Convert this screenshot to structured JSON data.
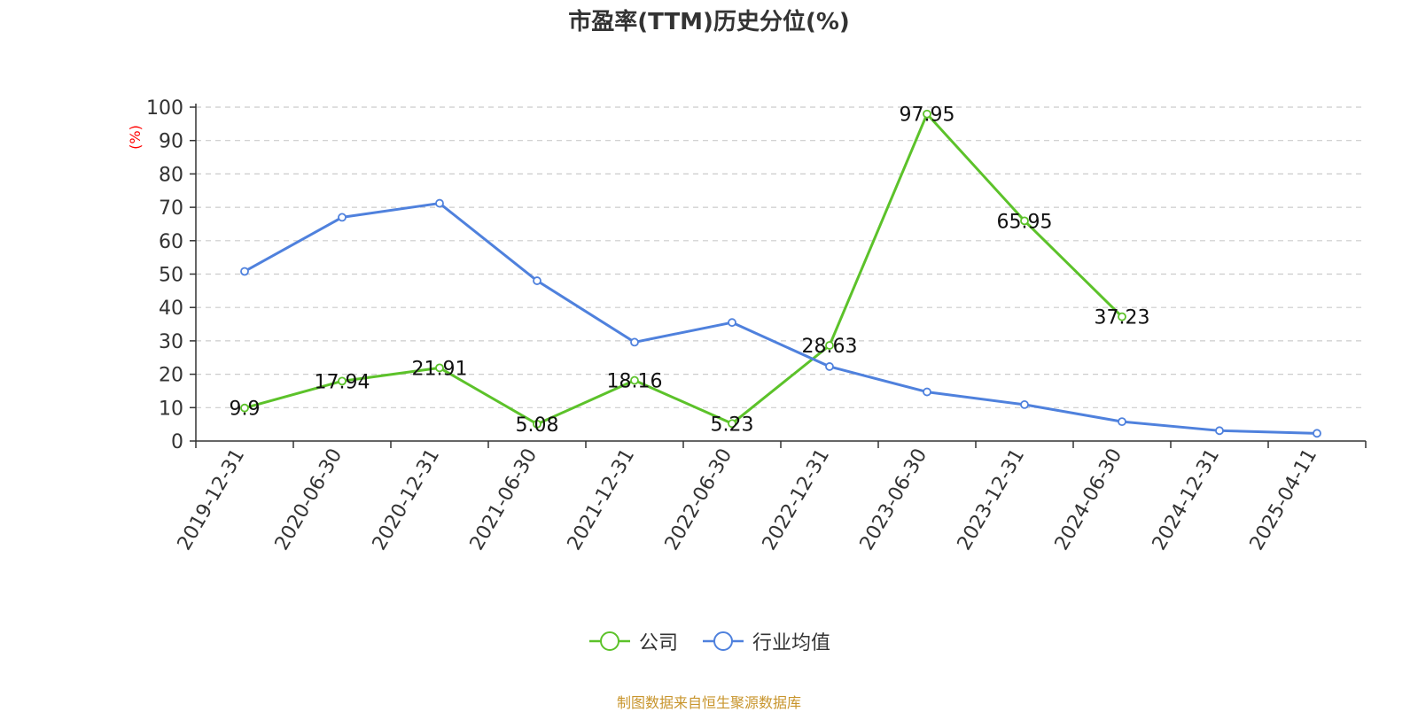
{
  "source_note": "制图数据来自恒生聚源数据库",
  "chart_data": {
    "type": "line",
    "title": "市盈率(TTM)历史分位(%)",
    "xlabel": "",
    "ylabel": "(%)",
    "ylim": [
      0,
      100
    ],
    "yticks": [
      0,
      10,
      20,
      30,
      40,
      50,
      60,
      70,
      80,
      90,
      100
    ],
    "grid": true,
    "legend_position": "bottom",
    "categories": [
      "2019-12-31",
      "2020-06-30",
      "2020-12-31",
      "2021-06-30",
      "2021-12-31",
      "2022-06-30",
      "2022-12-31",
      "2023-06-30",
      "2023-12-31",
      "2024-06-30",
      "2024-12-31",
      "2025-04-11"
    ],
    "series": [
      {
        "name": "公司",
        "color": "#5cc22a",
        "values": [
          9.9,
          17.94,
          21.91,
          5.08,
          18.16,
          5.23,
          28.63,
          97.95,
          65.95,
          37.23,
          null,
          null
        ],
        "labels": [
          "9.9",
          "17.94",
          "21.91",
          "5.08",
          "18.16",
          "5.23",
          "28.63",
          "97.95",
          "65.95",
          "37.23",
          null,
          null
        ]
      },
      {
        "name": "行业均值",
        "color": "#4f81dd",
        "values": [
          50.8,
          67.0,
          71.2,
          48.0,
          29.6,
          35.5,
          22.3,
          14.7,
          10.9,
          5.8,
          3.1,
          2.3
        ]
      }
    ]
  }
}
